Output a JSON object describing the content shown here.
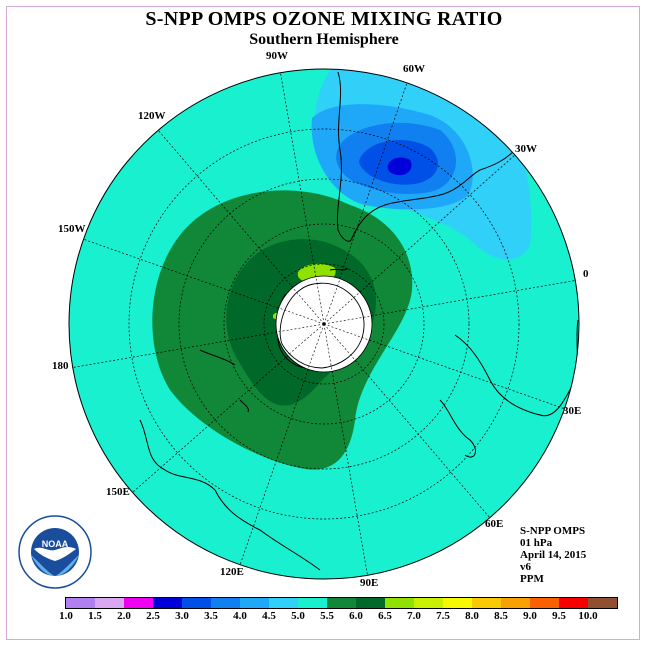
{
  "title": "S-NPP OMPS OZONE MIXING RATIO",
  "subtitle": "Southern Hemisphere",
  "longitude_labels": {
    "w90": "90W",
    "w60": "60W",
    "w30": "30W",
    "w120": "120W",
    "w150": "150W",
    "zero": "0",
    "lon180": "180",
    "e30": "30E",
    "e60": "60E",
    "e90": "90E",
    "e120": "120E",
    "e150": "150E"
  },
  "info": {
    "instrument": "S-NPP OMPS",
    "level": "01 hPa",
    "date": "April 14, 2015",
    "version": "v6",
    "units": "PPM"
  },
  "logo": {
    "text": "NOAA"
  },
  "colorbar": {
    "ticks": [
      "1.0",
      "1.5",
      "2.0",
      "2.5",
      "3.0",
      "3.5",
      "4.0",
      "4.5",
      "5.0",
      "5.5",
      "6.0",
      "6.5",
      "7.0",
      "7.5",
      "8.0",
      "8.5",
      "9.0",
      "9.5",
      "10.0"
    ],
    "colors": [
      "#b080f0",
      "#d8a8f0",
      "#f000f0",
      "#0000d8",
      "#0050e8",
      "#1080f0",
      "#20a8f8",
      "#30d0f8",
      "#18f0d0",
      "#108838",
      "#006828",
      "#90e000",
      "#c8f000",
      "#f8f800",
      "#f8c800",
      "#f8a000",
      "#f86000",
      "#f80000",
      "#905030"
    ]
  },
  "chart_data": {
    "type": "heatmap",
    "projection": "south-polar-stereographic",
    "variable": "ozone mixing ratio",
    "units": "PPM",
    "pressure_level": "01 hPa",
    "regions": [
      {
        "area": "Antarctic circumpolar ring",
        "value_range": [
          5.0,
          6.0
        ]
      },
      {
        "area": "inner ring around pole",
        "value_range": [
          5.5,
          6.0
        ]
      },
      {
        "area": "small patch near 75S 70W",
        "value_range": [
          6.0,
          6.5
        ]
      },
      {
        "area": "South Atlantic / South America (30W-75W)",
        "value_range": [
          2.5,
          4.5
        ],
        "minimum": 2.5
      },
      {
        "area": "rest of hemisphere",
        "value_range": [
          4.5,
          5.0
        ]
      }
    ],
    "missing_data": "polar night region near pole (white)"
  }
}
